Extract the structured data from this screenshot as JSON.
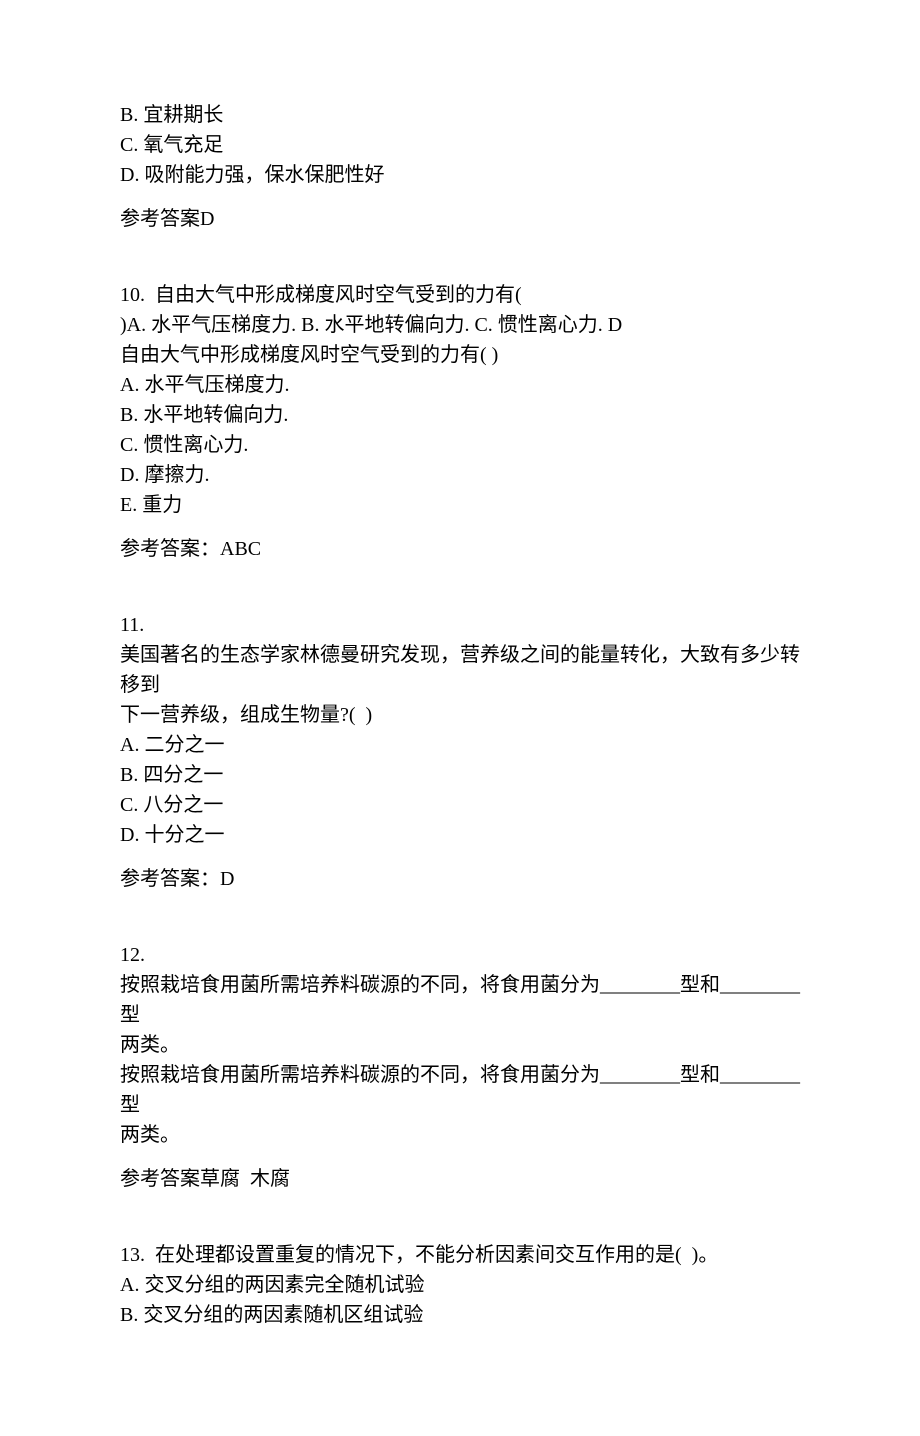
{
  "q9_tail": {
    "optB": "B. 宜耕期长",
    "optC": "C. 氧气充足",
    "optD": "D. 吸附能力强，保水保肥性好",
    "answer": "参考答案D"
  },
  "q10": {
    "stem1": "10.  自由大气中形成梯度风时空气受到的力有(",
    "stem2": ")A. 水平气压梯度力. B. 水平地转偏向力. C. 惯性离心力. D",
    "stem3": "自由大气中形成梯度风时空气受到的力有( )",
    "optA": "A. 水平气压梯度力.",
    "optB": "B. 水平地转偏向力.",
    "optC": "C. 惯性离心力.",
    "optD": "D. 摩擦力.",
    "optE": "E. 重力",
    "answer": "参考答案：ABC"
  },
  "q11": {
    "num": "11.",
    "stem1": "美国著名的生态学家林德曼研究发现，营养级之间的能量转化，大致有多少转移到",
    "stem2": "下一营养级，组成生物量?(  )",
    "optA": "A. 二分之一",
    "optB": "B. 四分之一",
    "optC": "C. 八分之一",
    "optD": "D. 十分之一",
    "answer": "参考答案：D"
  },
  "q12": {
    "num": "12.",
    "stem1": "按照栽培食用菌所需培养料碳源的不同，将食用菌分为________型和________型",
    "stem2": "两类。",
    "stem3": "按照栽培食用菌所需培养料碳源的不同，将食用菌分为________型和________型",
    "stem4": "两类。",
    "answer": "参考答案草腐  木腐"
  },
  "q13": {
    "stem": "13.  在处理都设置重复的情况下，不能分析因素间交互作用的是(  )。",
    "optA": "A. 交叉分组的两因素完全随机试验",
    "optB": "B. 交叉分组的两因素随机区组试验"
  }
}
